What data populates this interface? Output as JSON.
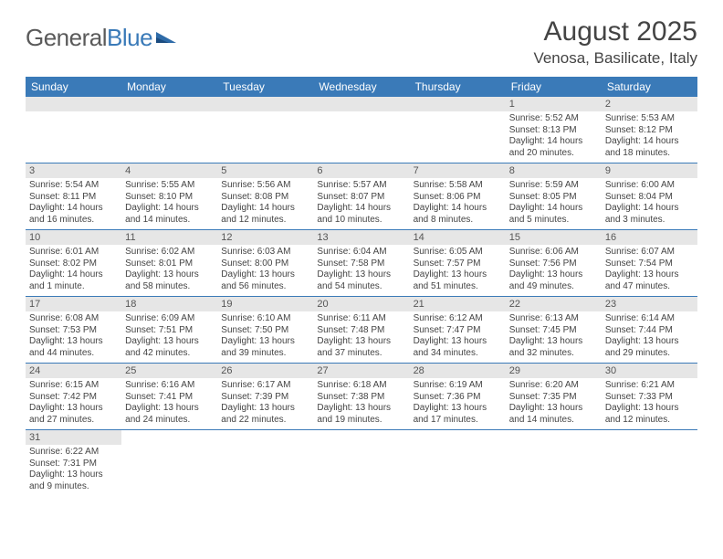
{
  "logo": {
    "general": "General",
    "blue": "Blue"
  },
  "title": "August 2025",
  "location": "Venosa, Basilicate, Italy",
  "colors": {
    "header_bg": "#3a7ab8",
    "header_fg": "#ffffff",
    "daynum_bg": "#e6e6e6",
    "rule": "#3a7ab8",
    "text": "#444444"
  },
  "fonts": {
    "title_size": 30,
    "location_size": 17,
    "th_size": 12,
    "daynum_size": 11,
    "cell_size": 10
  },
  "weekdays": [
    "Sunday",
    "Monday",
    "Tuesday",
    "Wednesday",
    "Thursday",
    "Friday",
    "Saturday"
  ],
  "weeks": [
    [
      null,
      null,
      null,
      null,
      null,
      {
        "n": "1",
        "sunrise": "Sunrise: 5:52 AM",
        "sunset": "Sunset: 8:13 PM",
        "daylight": "Daylight: 14 hours and 20 minutes."
      },
      {
        "n": "2",
        "sunrise": "Sunrise: 5:53 AM",
        "sunset": "Sunset: 8:12 PM",
        "daylight": "Daylight: 14 hours and 18 minutes."
      }
    ],
    [
      {
        "n": "3",
        "sunrise": "Sunrise: 5:54 AM",
        "sunset": "Sunset: 8:11 PM",
        "daylight": "Daylight: 14 hours and 16 minutes."
      },
      {
        "n": "4",
        "sunrise": "Sunrise: 5:55 AM",
        "sunset": "Sunset: 8:10 PM",
        "daylight": "Daylight: 14 hours and 14 minutes."
      },
      {
        "n": "5",
        "sunrise": "Sunrise: 5:56 AM",
        "sunset": "Sunset: 8:08 PM",
        "daylight": "Daylight: 14 hours and 12 minutes."
      },
      {
        "n": "6",
        "sunrise": "Sunrise: 5:57 AM",
        "sunset": "Sunset: 8:07 PM",
        "daylight": "Daylight: 14 hours and 10 minutes."
      },
      {
        "n": "7",
        "sunrise": "Sunrise: 5:58 AM",
        "sunset": "Sunset: 8:06 PM",
        "daylight": "Daylight: 14 hours and 8 minutes."
      },
      {
        "n": "8",
        "sunrise": "Sunrise: 5:59 AM",
        "sunset": "Sunset: 8:05 PM",
        "daylight": "Daylight: 14 hours and 5 minutes."
      },
      {
        "n": "9",
        "sunrise": "Sunrise: 6:00 AM",
        "sunset": "Sunset: 8:04 PM",
        "daylight": "Daylight: 14 hours and 3 minutes."
      }
    ],
    [
      {
        "n": "10",
        "sunrise": "Sunrise: 6:01 AM",
        "sunset": "Sunset: 8:02 PM",
        "daylight": "Daylight: 14 hours and 1 minute."
      },
      {
        "n": "11",
        "sunrise": "Sunrise: 6:02 AM",
        "sunset": "Sunset: 8:01 PM",
        "daylight": "Daylight: 13 hours and 58 minutes."
      },
      {
        "n": "12",
        "sunrise": "Sunrise: 6:03 AM",
        "sunset": "Sunset: 8:00 PM",
        "daylight": "Daylight: 13 hours and 56 minutes."
      },
      {
        "n": "13",
        "sunrise": "Sunrise: 6:04 AM",
        "sunset": "Sunset: 7:58 PM",
        "daylight": "Daylight: 13 hours and 54 minutes."
      },
      {
        "n": "14",
        "sunrise": "Sunrise: 6:05 AM",
        "sunset": "Sunset: 7:57 PM",
        "daylight": "Daylight: 13 hours and 51 minutes."
      },
      {
        "n": "15",
        "sunrise": "Sunrise: 6:06 AM",
        "sunset": "Sunset: 7:56 PM",
        "daylight": "Daylight: 13 hours and 49 minutes."
      },
      {
        "n": "16",
        "sunrise": "Sunrise: 6:07 AM",
        "sunset": "Sunset: 7:54 PM",
        "daylight": "Daylight: 13 hours and 47 minutes."
      }
    ],
    [
      {
        "n": "17",
        "sunrise": "Sunrise: 6:08 AM",
        "sunset": "Sunset: 7:53 PM",
        "daylight": "Daylight: 13 hours and 44 minutes."
      },
      {
        "n": "18",
        "sunrise": "Sunrise: 6:09 AM",
        "sunset": "Sunset: 7:51 PM",
        "daylight": "Daylight: 13 hours and 42 minutes."
      },
      {
        "n": "19",
        "sunrise": "Sunrise: 6:10 AM",
        "sunset": "Sunset: 7:50 PM",
        "daylight": "Daylight: 13 hours and 39 minutes."
      },
      {
        "n": "20",
        "sunrise": "Sunrise: 6:11 AM",
        "sunset": "Sunset: 7:48 PM",
        "daylight": "Daylight: 13 hours and 37 minutes."
      },
      {
        "n": "21",
        "sunrise": "Sunrise: 6:12 AM",
        "sunset": "Sunset: 7:47 PM",
        "daylight": "Daylight: 13 hours and 34 minutes."
      },
      {
        "n": "22",
        "sunrise": "Sunrise: 6:13 AM",
        "sunset": "Sunset: 7:45 PM",
        "daylight": "Daylight: 13 hours and 32 minutes."
      },
      {
        "n": "23",
        "sunrise": "Sunrise: 6:14 AM",
        "sunset": "Sunset: 7:44 PM",
        "daylight": "Daylight: 13 hours and 29 minutes."
      }
    ],
    [
      {
        "n": "24",
        "sunrise": "Sunrise: 6:15 AM",
        "sunset": "Sunset: 7:42 PM",
        "daylight": "Daylight: 13 hours and 27 minutes."
      },
      {
        "n": "25",
        "sunrise": "Sunrise: 6:16 AM",
        "sunset": "Sunset: 7:41 PM",
        "daylight": "Daylight: 13 hours and 24 minutes."
      },
      {
        "n": "26",
        "sunrise": "Sunrise: 6:17 AM",
        "sunset": "Sunset: 7:39 PM",
        "daylight": "Daylight: 13 hours and 22 minutes."
      },
      {
        "n": "27",
        "sunrise": "Sunrise: 6:18 AM",
        "sunset": "Sunset: 7:38 PM",
        "daylight": "Daylight: 13 hours and 19 minutes."
      },
      {
        "n": "28",
        "sunrise": "Sunrise: 6:19 AM",
        "sunset": "Sunset: 7:36 PM",
        "daylight": "Daylight: 13 hours and 17 minutes."
      },
      {
        "n": "29",
        "sunrise": "Sunrise: 6:20 AM",
        "sunset": "Sunset: 7:35 PM",
        "daylight": "Daylight: 13 hours and 14 minutes."
      },
      {
        "n": "30",
        "sunrise": "Sunrise: 6:21 AM",
        "sunset": "Sunset: 7:33 PM",
        "daylight": "Daylight: 13 hours and 12 minutes."
      }
    ],
    [
      {
        "n": "31",
        "sunrise": "Sunrise: 6:22 AM",
        "sunset": "Sunset: 7:31 PM",
        "daylight": "Daylight: 13 hours and 9 minutes."
      },
      null,
      null,
      null,
      null,
      null,
      null
    ]
  ]
}
